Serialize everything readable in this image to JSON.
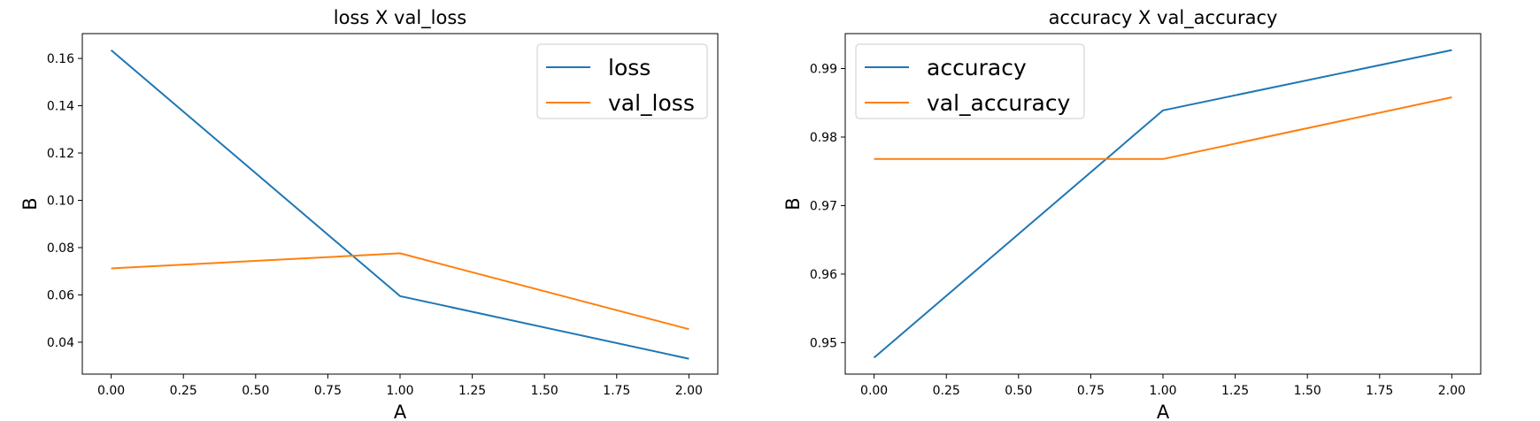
{
  "chart_data": [
    {
      "type": "line",
      "title": "loss X val_loss",
      "xlabel": "A",
      "ylabel": "B",
      "x": [
        0,
        1,
        2
      ],
      "xlim": [
        -0.1,
        2.1
      ],
      "ylim": [
        0.0265,
        0.1705
      ],
      "xticks": [
        "0.00",
        "0.25",
        "0.50",
        "0.75",
        "1.00",
        "1.25",
        "1.50",
        "1.75",
        "2.00"
      ],
      "yticks": [
        "0.04",
        "0.06",
        "0.08",
        "0.10",
        "0.12",
        "0.14",
        "0.16"
      ],
      "grid": false,
      "legend_position": "top-right",
      "series": [
        {
          "name": "loss",
          "values": [
            0.1635,
            0.0595,
            0.033
          ],
          "color": "#1f77b4"
        },
        {
          "name": "val_loss",
          "values": [
            0.0712,
            0.0776,
            0.0455
          ],
          "color": "#ff7f0e"
        }
      ]
    },
    {
      "type": "line",
      "title": "accuracy X val_accuracy",
      "xlabel": "A",
      "ylabel": "B",
      "x": [
        0,
        1,
        2
      ],
      "xlim": [
        -0.1,
        2.1
      ],
      "ylim": [
        0.9454,
        0.9951
      ],
      "xticks": [
        "0.00",
        "0.25",
        "0.50",
        "0.75",
        "1.00",
        "1.25",
        "1.50",
        "1.75",
        "2.00"
      ],
      "yticks": [
        "0.95",
        "0.96",
        "0.97",
        "0.98",
        "0.99"
      ],
      "grid": false,
      "legend_position": "top-left",
      "series": [
        {
          "name": "accuracy",
          "values": [
            0.9478,
            0.9839,
            0.9927
          ],
          "color": "#1f77b4"
        },
        {
          "name": "val_accuracy",
          "values": [
            0.9768,
            0.9768,
            0.9858
          ],
          "color": "#ff7f0e"
        }
      ]
    }
  ]
}
